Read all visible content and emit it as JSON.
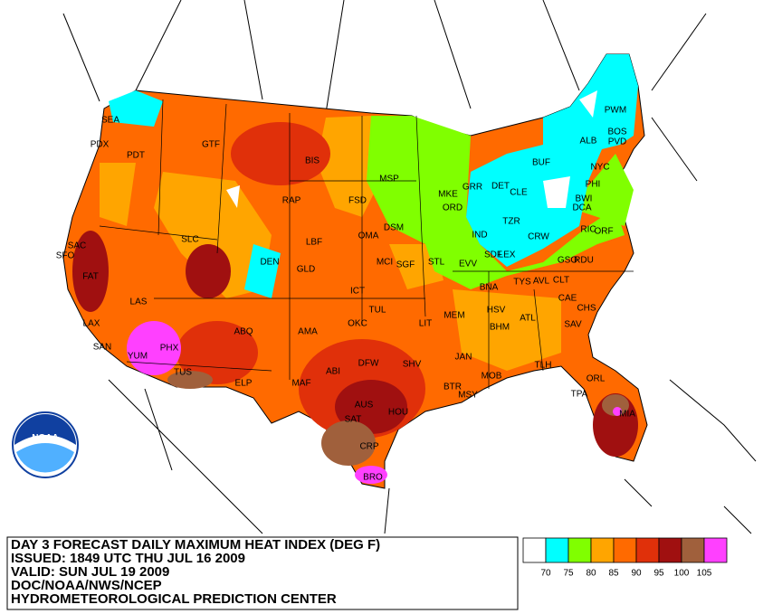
{
  "title_block": {
    "lines": [
      "DAY 3 FORECAST DAILY MAXIMUM HEAT INDEX (DEG F)",
      "ISSUED: 1849 UTC THU JUL 16 2009",
      "VALID: SUN JUL 19 2009",
      "DOC/NOAA/NWS/NCEP",
      "HYDROMETEOROLOGICAL PREDICTION CENTER"
    ]
  },
  "legend": {
    "colors": [
      "#ffffff",
      "#00ffff",
      "#80ff00",
      "#ffa500",
      "#ff6a00",
      "#e0300a",
      "#a01010",
      "#a0603c",
      "#ff40ff"
    ],
    "labels": [
      70,
      75,
      80,
      85,
      90,
      95,
      100,
      105
    ]
  },
  "logo": "NOAA",
  "stations": [
    "SEA",
    "PDX",
    "PDT",
    "GTF",
    "BIS",
    "MSP",
    "FSD",
    "RAP",
    "MKE",
    "GRR",
    "DET",
    "CLE",
    "BUF",
    "ALB",
    "PWM",
    "BOS",
    "PVD",
    "NYC",
    "PHI",
    "BWI",
    "DCA",
    "ORD",
    "DSM",
    "OMA",
    "SLC",
    "LBF",
    "DEN",
    "GLD",
    "MCI",
    "STL",
    "IND",
    "SDF",
    "LEX",
    "CRW",
    "RIC",
    "ORF",
    "SFO",
    "SAC",
    "FAT",
    "LAS",
    "LAX",
    "SAN",
    "PHX",
    "YUM",
    "TUS",
    "ELP",
    "ABQ",
    "AMA",
    "ICT",
    "TUL",
    "OKC",
    "LIT",
    "MEM",
    "BNA",
    "TYS",
    "AVL",
    "CLT",
    "GSO",
    "RDU",
    "CAE",
    "CHS",
    "SAV",
    "ATL",
    "BHM",
    "HSV",
    "JAN",
    "MOB",
    "MSY",
    "BTR",
    "SHV",
    "DFW",
    "ABI",
    "MAF",
    "SAT",
    "AUS",
    "HOU",
    "CRP",
    "BRO",
    "TLH",
    "TPA",
    "ORL",
    "MIA",
    "EVV",
    "SGF",
    "TZR"
  ]
}
